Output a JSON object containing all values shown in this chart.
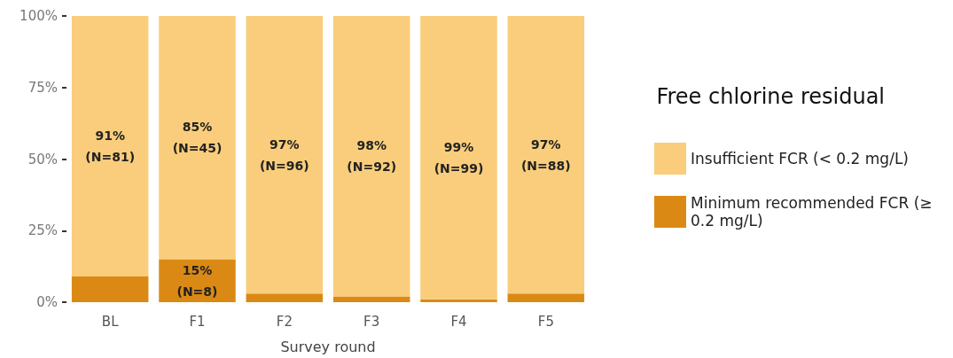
{
  "chart_data": {
    "type": "bar",
    "stacked": true,
    "xlabel": "Survey round",
    "legend_title": "Free chlorine residual",
    "categories": [
      "BL",
      "F1",
      "F2",
      "F3",
      "F4",
      "F5"
    ],
    "series": [
      {
        "name": "Minimum recommended FCR (≥0.2 mg/L)",
        "color": "#da8a14",
        "values": [
          9,
          15,
          3,
          2,
          1,
          3
        ],
        "value_labels": [
          null,
          "15%\n(N=8)",
          null,
          null,
          null,
          null
        ]
      },
      {
        "name": "Insufficient FCR (< 0.2 mg/L)",
        "color": "#f9cd7b",
        "values": [
          91,
          85,
          97,
          98,
          99,
          97
        ],
        "value_labels": [
          "91%\n(N=81)",
          "85%\n(N=45)",
          "97%\n(N=96)",
          "98%\n(N=92)",
          "99%\n(N=99)",
          "97%\n(N=88)"
        ]
      }
    ],
    "ylim": [
      0,
      100
    ],
    "yticks": [
      {
        "value": 0,
        "label": "0%"
      },
      {
        "value": 25,
        "label": "25%"
      },
      {
        "value": 50,
        "label": "50%"
      },
      {
        "value": 75,
        "label": "75%"
      },
      {
        "value": 100,
        "label": "100%"
      }
    ],
    "grid": false,
    "legend": "right"
  }
}
